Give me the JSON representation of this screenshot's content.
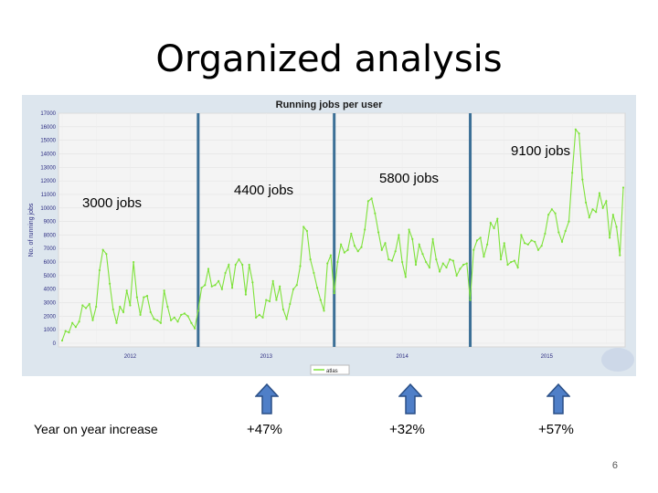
{
  "slide": {
    "title": "Organized analysis",
    "page_number": "6"
  },
  "annotations": {
    "jobs_2012": "3000 jobs",
    "jobs_2013": "4400 jobs",
    "jobs_2014": "5800 jobs",
    "jobs_2015": "9100 jobs",
    "yoy_label": "Year on year increase",
    "yoy_2013": "+47%",
    "yoy_2014": "+32%",
    "yoy_2015": "+57%"
  },
  "colors": {
    "series": "#7ee23a",
    "divider": "#3b6f96",
    "arrow_fill": "#4f7fc8",
    "arrow_stroke": "#2a4f86",
    "plot_bg": "#f4f4f4",
    "outer_bg": "#dde6ee"
  },
  "chart_data": {
    "type": "line",
    "title": "Running jobs per user",
    "ylabel": "No. of running jobs",
    "legend": "atlas",
    "ylim": [
      0,
      17000
    ],
    "yticks": [
      "0",
      "1000",
      "2000",
      "3000",
      "4000",
      "5000",
      "6000",
      "7000",
      "8000",
      "9000",
      "10000",
      "11000",
      "12000",
      "13000",
      "14000",
      "15000",
      "16000",
      "17000"
    ],
    "year_labels": [
      "2012",
      "2013",
      "2014",
      "2015"
    ],
    "dividers_at_index": [
      40,
      80,
      120
    ],
    "series": [
      {
        "name": "atlas",
        "values": [
          200,
          900,
          800,
          1500,
          1200,
          1600,
          2800,
          2600,
          2900,
          1700,
          2700,
          5400,
          6900,
          6600,
          4400,
          2500,
          1500,
          2700,
          2300,
          3900,
          2800,
          6000,
          3400,
          2100,
          3400,
          3500,
          2300,
          1800,
          1700,
          1500,
          3900,
          2700,
          1700,
          1900,
          1600,
          2100,
          2200,
          2000,
          1500,
          1100,
          2400,
          4100,
          4300,
          5500,
          4200,
          4300,
          4600,
          4000,
          5200,
          5800,
          4100,
          5800,
          6200,
          5800,
          3600,
          5800,
          4500,
          1900,
          2100,
          1900,
          3200,
          3100,
          4600,
          3200,
          4200,
          2500,
          1800,
          2900,
          4000,
          4300,
          5700,
          8600,
          8300,
          6200,
          5200,
          4100,
          3200,
          2400,
          5900,
          6500,
          3700,
          6000,
          7300,
          6700,
          6900,
          8100,
          7200,
          6800,
          7100,
          8400,
          10500,
          10700,
          9600,
          8200,
          6900,
          7400,
          6200,
          6100,
          6800,
          8000,
          6000,
          4900,
          8400,
          7700,
          5800,
          7300,
          6600,
          6000,
          5600,
          7700,
          6200,
          5300,
          5900,
          5600,
          6200,
          6100,
          5000,
          5500,
          5800,
          5900,
          3200,
          6900,
          7600,
          7800,
          6400,
          7300,
          8900,
          8500,
          9200,
          6200,
          7400,
          5800,
          6000,
          6100,
          5600,
          8000,
          7400,
          7300,
          7600,
          7500,
          6900,
          7200,
          8100,
          9500,
          9900,
          9600,
          8200,
          7500,
          8300,
          9000,
          12600,
          15800,
          15500,
          12100,
          10400,
          9300,
          9900,
          9700,
          11100,
          10000,
          10500,
          7800,
          9500,
          8600,
          6500,
          11500
        ]
      }
    ]
  }
}
